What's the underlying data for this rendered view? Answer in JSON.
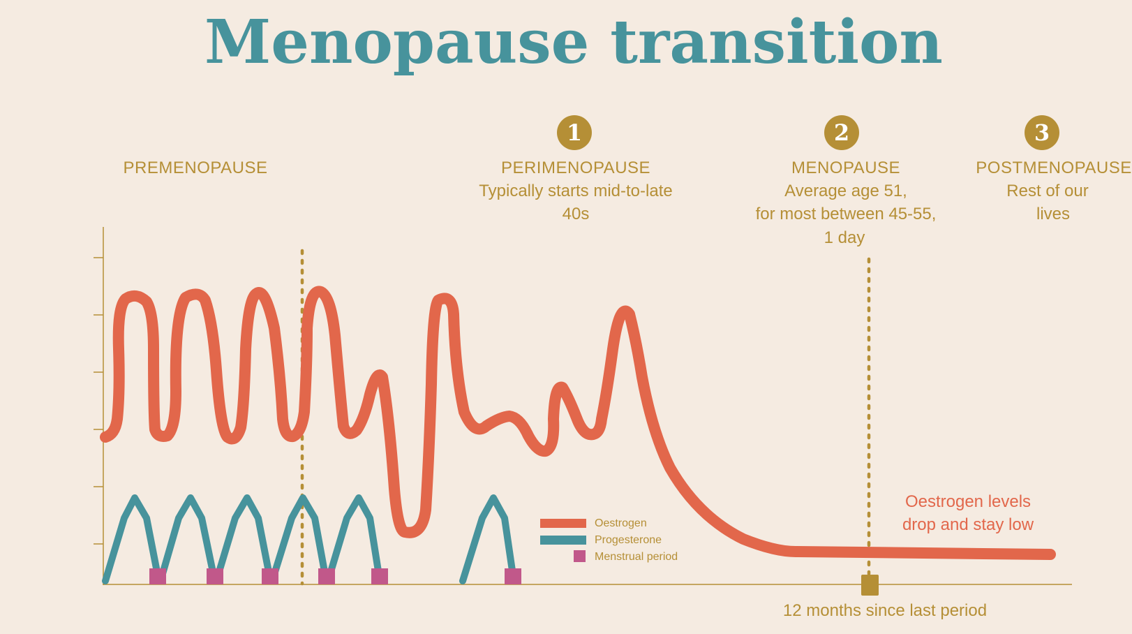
{
  "title": "Menopause transition",
  "colors": {
    "background": "#f5ebe1",
    "title": "#47939c",
    "accent_gold": "#b58f36",
    "oestrogen": "#e2674b",
    "progesterone": "#47939c",
    "menstrual_period": "#c1588a"
  },
  "phases": [
    {
      "key": "premenopause",
      "badge": "",
      "name": "PREMENOPAUSE",
      "lines": []
    },
    {
      "key": "perimenopause",
      "badge": "1",
      "name": "PERIMENOPAUSE",
      "lines": [
        "Typically starts mid-to-late",
        "40s"
      ]
    },
    {
      "key": "menopause",
      "badge": "2",
      "name": "MENOPAUSE",
      "lines": [
        "Average age 51,",
        "for most between 45-55,",
        "1 day"
      ]
    },
    {
      "key": "postmenopause",
      "badge": "3",
      "name": "POSTMENOPAUSE",
      "lines": [
        "Rest of our",
        "lives"
      ]
    }
  ],
  "legend": {
    "oestrogen": "Oestrogen",
    "progesterone": "Progesterone",
    "menstrual_period": "Menstrual period"
  },
  "annotations": {
    "oestrogen_note_line1": "Oestrogen levels",
    "oestrogen_note_line2": "drop and stay low",
    "marker_label": "12 months since last period"
  },
  "icons": {
    "badge": "circle-number-icon",
    "marker": "square-marker-icon"
  }
}
